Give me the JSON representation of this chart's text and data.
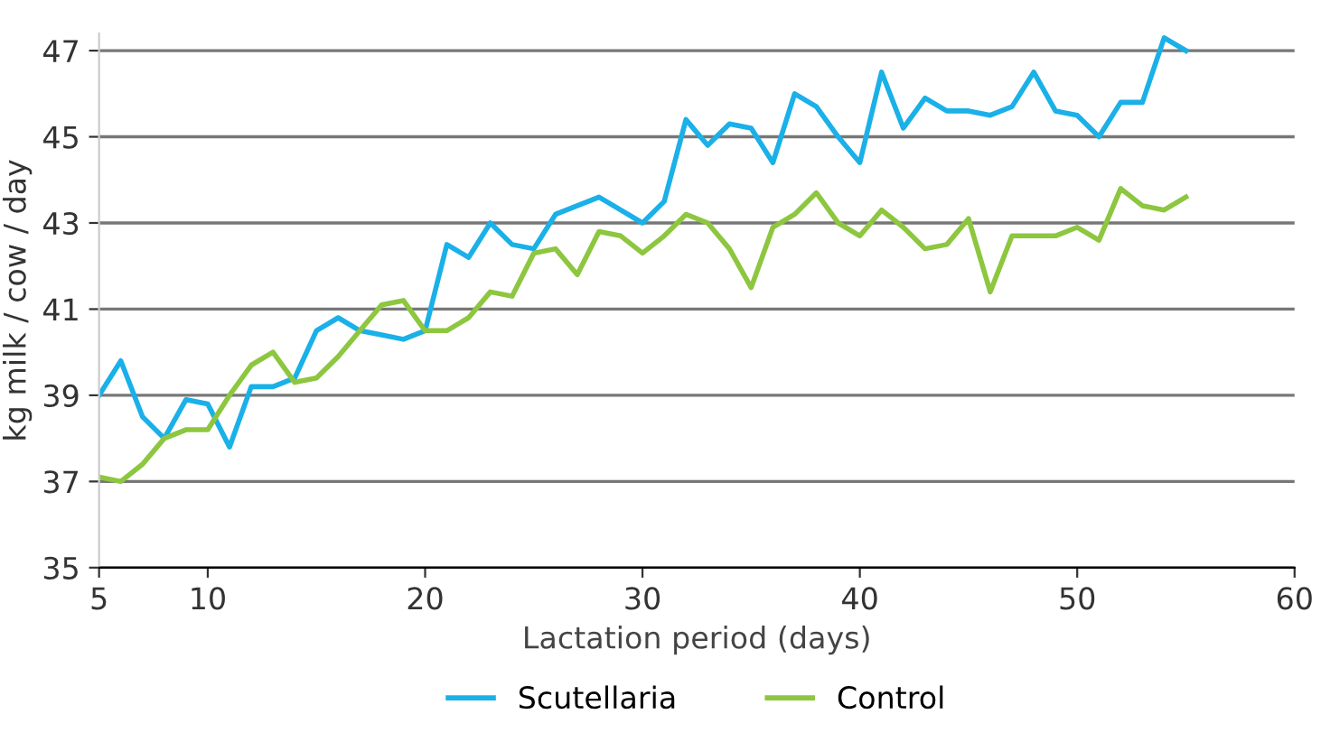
{
  "chart_data": {
    "type": "line",
    "xlabel": "Lactation period (days)",
    "ylabel": "kg milk / cow / day",
    "x": [
      5,
      6,
      7,
      8,
      9,
      10,
      11,
      12,
      13,
      14,
      15,
      16,
      17,
      18,
      19,
      20,
      21,
      22,
      23,
      24,
      25,
      26,
      27,
      28,
      29,
      30,
      31,
      32,
      33,
      34,
      35,
      36,
      37,
      38,
      39,
      40,
      41,
      42,
      43,
      44,
      45,
      46,
      47,
      48,
      49,
      50,
      51,
      52,
      53,
      54,
      55
    ],
    "series": [
      {
        "name": "Scutellaria",
        "color": "#1ab0e8",
        "values": [
          39.0,
          39.8,
          38.5,
          38.0,
          38.9,
          38.8,
          37.8,
          39.2,
          39.2,
          39.4,
          40.5,
          40.8,
          40.5,
          40.4,
          40.3,
          40.5,
          42.5,
          42.2,
          43.0,
          42.5,
          42.4,
          43.2,
          43.4,
          43.6,
          43.3,
          43.0,
          43.5,
          45.4,
          44.8,
          45.3,
          45.2,
          44.4,
          46.0,
          45.7,
          45.0,
          44.4,
          46.5,
          45.2,
          45.9,
          45.6,
          45.6,
          45.5,
          45.7,
          46.5,
          45.6,
          45.5,
          45.0,
          45.8,
          45.8,
          47.3,
          47.0
        ]
      },
      {
        "name": "Control",
        "color": "#8dc63f",
        "values": [
          37.1,
          37.0,
          37.4,
          38.0,
          38.2,
          38.2,
          39.0,
          39.7,
          40.0,
          39.3,
          39.4,
          39.9,
          40.5,
          41.1,
          41.2,
          40.5,
          40.5,
          40.8,
          41.4,
          41.3,
          42.3,
          42.4,
          41.8,
          42.8,
          42.7,
          42.3,
          42.7,
          43.2,
          43.0,
          42.4,
          41.5,
          42.9,
          43.2,
          43.7,
          43.0,
          42.7,
          43.3,
          42.9,
          42.4,
          42.5,
          43.1,
          41.4,
          42.7,
          42.7,
          42.7,
          42.9,
          42.6,
          43.8,
          43.4,
          43.3,
          43.6
        ]
      }
    ],
    "xlim": [
      5,
      60
    ],
    "xticks": [
      5,
      10,
      20,
      30,
      40,
      50,
      60
    ],
    "ylim": [
      35,
      47.4
    ],
    "yticks": [
      35,
      37,
      39,
      41,
      43,
      45,
      47
    ],
    "grid": "y",
    "legend": "bottom",
    "marker": "none",
    "line_style": "solid"
  }
}
